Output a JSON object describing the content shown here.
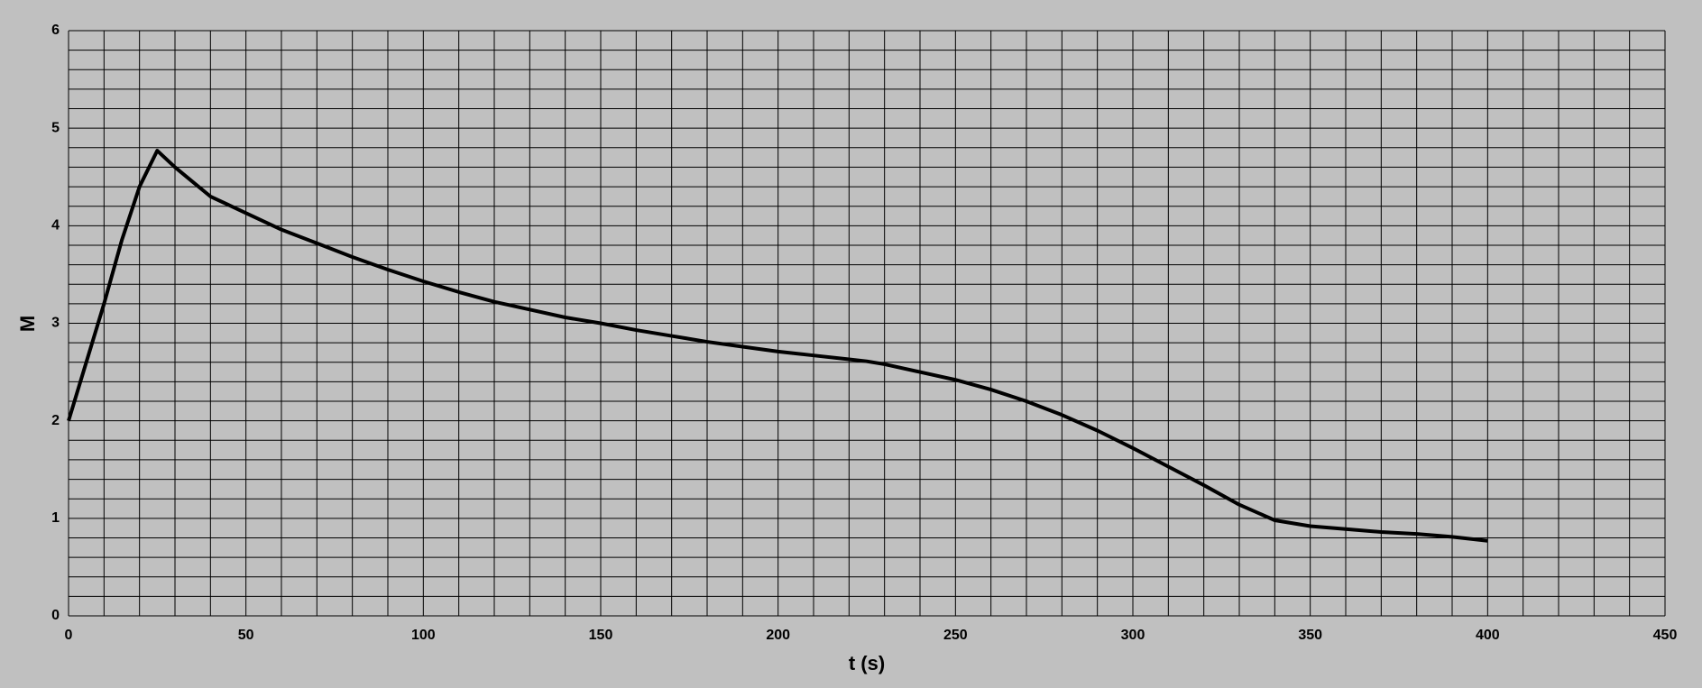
{
  "chart_data": {
    "type": "line",
    "x_label": "t (s)",
    "y_label": "M",
    "x": [
      0,
      5,
      10,
      15,
      20,
      25,
      30,
      35,
      40,
      50,
      60,
      70,
      80,
      90,
      100,
      110,
      120,
      130,
      140,
      150,
      160,
      170,
      180,
      190,
      200,
      210,
      220,
      225,
      230,
      240,
      250,
      260,
      270,
      280,
      290,
      300,
      310,
      320,
      330,
      340,
      350,
      360,
      370,
      380,
      390,
      400
    ],
    "series": [
      {
        "color": "#000000",
        "values": [
          2.0,
          2.6,
          3.2,
          3.85,
          4.4,
          4.77,
          4.6,
          4.45,
          4.3,
          4.13,
          3.96,
          3.82,
          3.68,
          3.55,
          3.43,
          3.32,
          3.22,
          3.14,
          3.06,
          3.0,
          2.93,
          2.87,
          2.81,
          2.76,
          2.71,
          2.67,
          2.63,
          2.61,
          2.58,
          2.5,
          2.42,
          2.32,
          2.2,
          2.06,
          1.9,
          1.72,
          1.53,
          1.34,
          1.14,
          0.98,
          0.92,
          0.89,
          0.86,
          0.84,
          0.81,
          0.77
        ]
      }
    ],
    "xlim": [
      0,
      450
    ],
    "ylim": [
      0,
      6
    ],
    "xticks": [
      0,
      50,
      100,
      150,
      200,
      250,
      300,
      350,
      400,
      450
    ],
    "yticks": [
      0,
      1,
      2,
      3,
      4,
      5,
      6
    ],
    "x_minor_ticks": [
      10,
      20,
      30,
      40,
      60,
      70,
      80,
      90,
      110,
      120,
      130,
      140,
      160,
      170,
      180,
      190,
      210,
      220,
      230,
      240,
      260,
      270,
      280,
      290,
      310,
      320,
      330,
      340,
      360,
      370,
      380,
      390,
      410,
      420,
      430,
      440
    ],
    "y_minor_ticks": [
      0.2,
      0.4,
      0.6,
      0.8,
      1.2,
      1.4,
      1.6,
      1.8,
      2.2,
      2.4,
      2.6,
      2.8,
      3.2,
      3.4,
      3.6,
      3.8,
      4.2,
      4.4,
      4.6,
      4.8,
      5.2,
      5.4,
      5.6,
      5.8
    ],
    "grid": true
  }
}
